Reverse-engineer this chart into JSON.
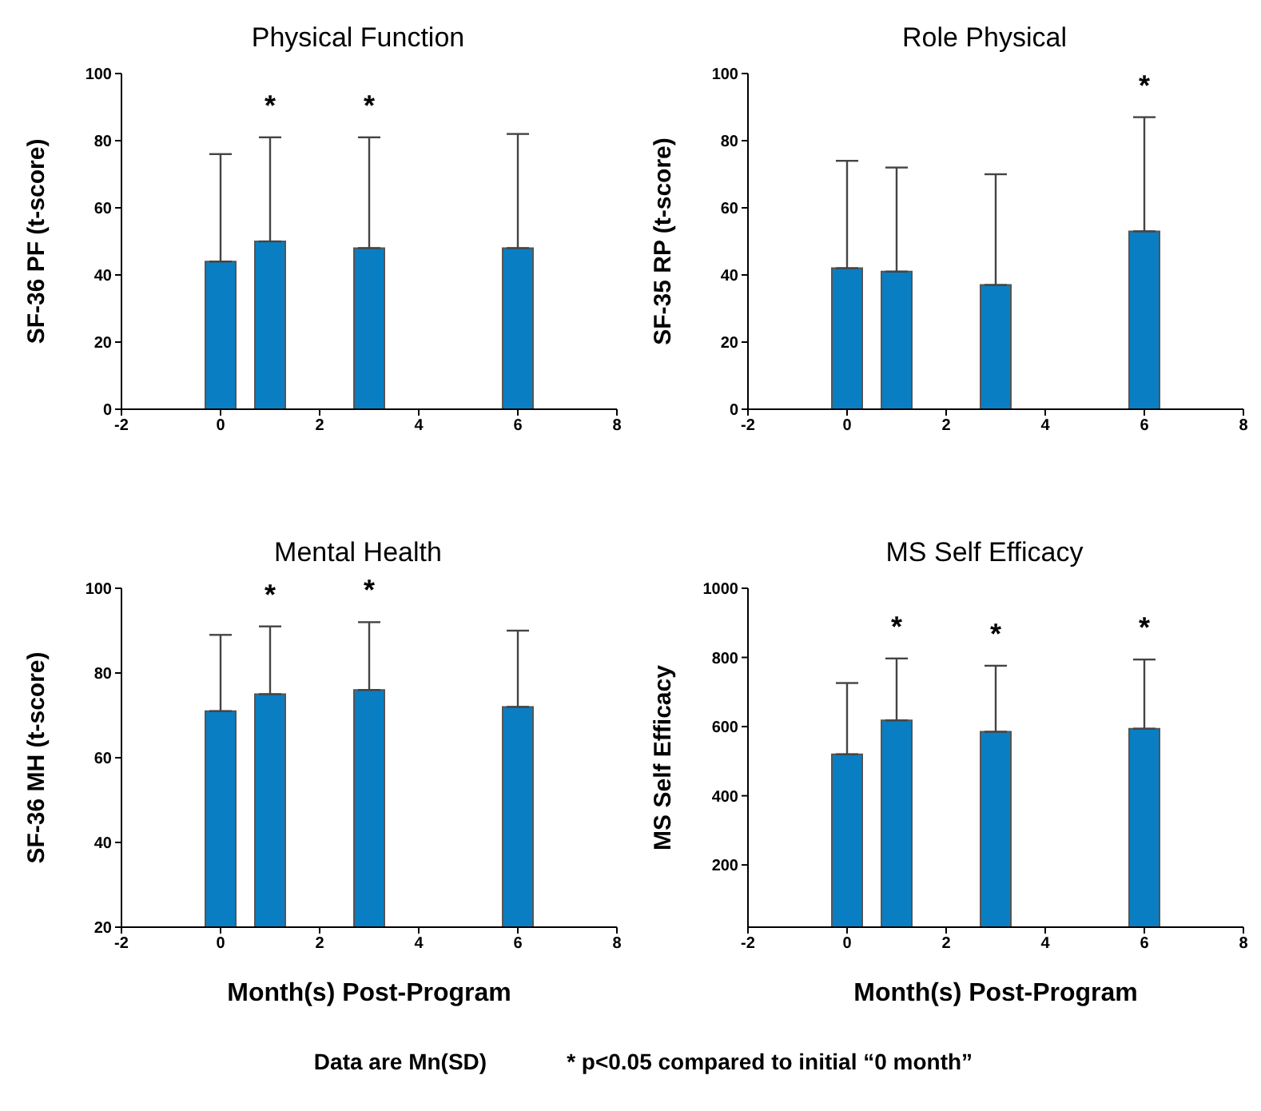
{
  "chart_data": [
    {
      "type": "bar",
      "title": "Physical Function",
      "ylabel": "SF-36 PF (t-score)",
      "x": [
        0,
        1,
        3,
        6
      ],
      "values": [
        44,
        50,
        48,
        48
      ],
      "errors": [
        [
          44,
          76
        ],
        [
          50,
          81
        ],
        [
          48,
          81
        ],
        [
          48,
          82
        ]
      ],
      "color": "#0a7ec2",
      "xlim": [
        -2,
        8
      ],
      "xticks": [
        -2,
        0,
        2,
        4,
        6,
        8
      ],
      "ylim": [
        0,
        100
      ],
      "yticks": [
        0,
        20,
        40,
        60,
        80,
        100
      ],
      "annotations": [
        {
          "text": "*",
          "x": 1,
          "y": 81
        },
        {
          "text": "*",
          "x": 3,
          "y": 81
        }
      ]
    },
    {
      "type": "bar",
      "title": "Role Physical",
      "ylabel": "SF-35 RP (t-score)",
      "x": [
        0,
        1,
        3,
        6
      ],
      "values": [
        42,
        41,
        37,
        53
      ],
      "errors": [
        [
          42,
          74
        ],
        [
          41,
          72
        ],
        [
          37,
          70
        ],
        [
          53,
          87
        ]
      ],
      "color": "#0a7ec2",
      "xlim": [
        -2,
        8
      ],
      "xticks": [
        -2,
        0,
        2,
        4,
        6,
        8
      ],
      "ylim": [
        0,
        100
      ],
      "yticks": [
        0,
        20,
        40,
        60,
        80,
        100
      ],
      "annotations": [
        {
          "text": "*",
          "x": 6,
          "y": 87
        }
      ]
    },
    {
      "type": "bar",
      "title": "Mental Health",
      "ylabel": "SF-36 MH (t-score)",
      "xlabel": "Month(s) Post-Program",
      "x": [
        0,
        1,
        3,
        6
      ],
      "values": [
        71,
        75,
        76,
        72
      ],
      "errors": [
        [
          71,
          89
        ],
        [
          75,
          91
        ],
        [
          76,
          92
        ],
        [
          72,
          90
        ]
      ],
      "color": "#0a7ec2",
      "xlim": [
        -2,
        8
      ],
      "xticks": [
        -2,
        0,
        2,
        4,
        6,
        8
      ],
      "ylim": [
        20,
        100
      ],
      "yticks": [
        20,
        40,
        60,
        80,
        100
      ],
      "annotations": [
        {
          "text": "*",
          "x": 1,
          "y": 91
        },
        {
          "text": "*",
          "x": 3,
          "y": 92
        },
        "Data are Mn(SD)"
      ]
    },
    {
      "type": "bar",
      "title": "MS Self Efficacy",
      "ylabel": "MS Self Efficacy",
      "xlabel": "Month(s) Post-Program",
      "x": [
        0,
        1,
        3,
        6
      ],
      "values": [
        520,
        618,
        585,
        594
      ],
      "errors": [
        [
          520,
          726
        ],
        [
          618,
          797
        ],
        [
          585,
          776
        ],
        [
          594,
          794
        ]
      ],
      "color": "#0a7ec2",
      "xlim": [
        -2,
        8
      ],
      "xticks": [
        -2,
        0,
        2,
        4,
        6,
        8
      ],
      "ylim": [
        20,
        1000
      ],
      "yticks": [
        200,
        400,
        600,
        800,
        1000
      ],
      "annotations": [
        {
          "text": "*",
          "x": 1,
          "y": 797
        },
        {
          "text": "*",
          "x": 3,
          "y": 776
        },
        {
          "text": "*",
          "x": 6,
          "y": 794
        },
        "* p<0.05 compared to initial “0 month”"
      ]
    }
  ]
}
